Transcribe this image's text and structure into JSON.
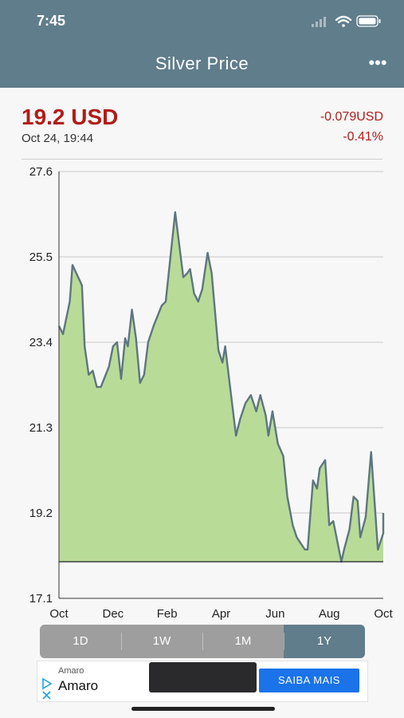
{
  "status_bar": {
    "time": "7:45"
  },
  "header": {
    "title": "Silver Price",
    "more_label": "•••"
  },
  "quote": {
    "price": "19.2 USD",
    "timestamp": "Oct 24, 19:44",
    "change_abs": "-0.079USD",
    "change_pct": "-0.41%"
  },
  "colors": {
    "header": "#607d8b",
    "negative": "#b01c18",
    "area_fill": "#b9db98",
    "line": "#5d7680"
  },
  "chart_data": {
    "type": "area",
    "ylim": [
      17.1,
      27.6
    ],
    "yticks": [
      "27.6",
      "25.5",
      "23.4",
      "21.3",
      "19.2",
      "17.1"
    ],
    "ytick_values": [
      27.6,
      25.5,
      23.4,
      21.3,
      19.2,
      17.1
    ],
    "xticks": [
      "Oct",
      "Dec",
      "Feb",
      "Apr",
      "Jun",
      "Aug",
      "Oct"
    ],
    "x_range": [
      0,
      12
    ],
    "baseline": 18.0,
    "grid": true,
    "series": [
      {
        "points": [
          [
            0.0,
            23.8
          ],
          [
            0.15,
            23.6
          ],
          [
            0.4,
            24.4
          ],
          [
            0.5,
            25.3
          ],
          [
            0.85,
            24.8
          ],
          [
            0.95,
            23.3
          ],
          [
            1.1,
            22.6
          ],
          [
            1.25,
            22.7
          ],
          [
            1.4,
            22.3
          ],
          [
            1.55,
            22.3
          ],
          [
            1.85,
            22.8
          ],
          [
            2.0,
            23.3
          ],
          [
            2.15,
            23.4
          ],
          [
            2.3,
            22.5
          ],
          [
            2.45,
            23.5
          ],
          [
            2.55,
            23.3
          ],
          [
            2.7,
            24.2
          ],
          [
            2.85,
            23.5
          ],
          [
            3.0,
            22.4
          ],
          [
            3.15,
            22.6
          ],
          [
            3.3,
            23.4
          ],
          [
            3.5,
            23.8
          ],
          [
            3.8,
            24.3
          ],
          [
            3.95,
            24.4
          ],
          [
            4.3,
            26.6
          ],
          [
            4.45,
            25.8
          ],
          [
            4.6,
            25.0
          ],
          [
            4.75,
            25.1
          ],
          [
            4.85,
            25.2
          ],
          [
            5.0,
            24.6
          ],
          [
            5.15,
            24.4
          ],
          [
            5.3,
            24.7
          ],
          [
            5.5,
            25.6
          ],
          [
            5.65,
            25.1
          ],
          [
            5.9,
            23.2
          ],
          [
            6.05,
            22.9
          ],
          [
            6.15,
            23.3
          ],
          [
            6.55,
            21.1
          ],
          [
            6.7,
            21.5
          ],
          [
            6.9,
            21.9
          ],
          [
            7.1,
            22.1
          ],
          [
            7.3,
            21.7
          ],
          [
            7.45,
            22.1
          ],
          [
            7.65,
            21.6
          ],
          [
            7.75,
            21.1
          ],
          [
            7.9,
            21.7
          ],
          [
            8.1,
            20.9
          ],
          [
            8.3,
            20.6
          ],
          [
            8.45,
            19.6
          ],
          [
            8.65,
            18.9
          ],
          [
            8.8,
            18.6
          ],
          [
            8.9,
            18.5
          ],
          [
            9.1,
            18.3
          ],
          [
            9.2,
            18.3
          ],
          [
            9.4,
            20.0
          ],
          [
            9.55,
            19.8
          ],
          [
            9.65,
            20.3
          ],
          [
            9.85,
            20.5
          ],
          [
            10.0,
            18.9
          ],
          [
            10.15,
            19.0
          ],
          [
            10.45,
            18.0
          ],
          [
            10.55,
            18.3
          ],
          [
            10.75,
            18.8
          ],
          [
            10.9,
            19.6
          ],
          [
            11.05,
            19.5
          ],
          [
            11.15,
            18.6
          ],
          [
            11.35,
            19.1
          ],
          [
            11.55,
            20.7
          ],
          [
            11.8,
            18.3
          ],
          [
            12.0,
            18.7
          ],
          [
            12.0,
            19.2
          ]
        ]
      }
    ]
  },
  "range_selector": {
    "options": [
      "1D",
      "1W",
      "1M",
      "1Y"
    ],
    "selected": "1Y"
  },
  "ad": {
    "sponsor": "Amaro",
    "name": "Amaro",
    "cta": "SAIBA MAIS"
  }
}
